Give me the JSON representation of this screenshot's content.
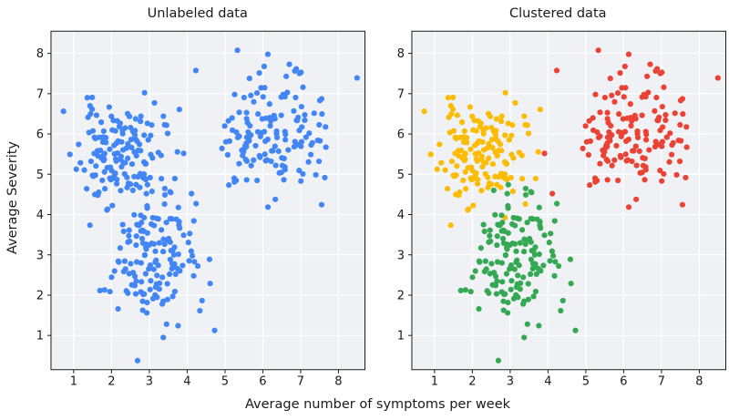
{
  "chart_data": {
    "type": "scatter",
    "panels": [
      {
        "title": "Unlabeled data",
        "coloring": "single",
        "color": "#4285f4"
      },
      {
        "title": "Clustered data",
        "coloring": "by-cluster"
      }
    ],
    "shared": {
      "xlabel": "Average number of symptoms per week",
      "ylabel": "Average Severity",
      "xlim": [
        0.4,
        8.7
      ],
      "ylim": [
        0.15,
        8.55
      ],
      "x_ticks": [
        1,
        2,
        3,
        4,
        5,
        6,
        7,
        8
      ],
      "y_ticks": [
        1,
        2,
        3,
        4,
        5,
        6,
        7,
        8
      ],
      "grid": true,
      "plot_background": "#eff1f5",
      "grid_color": "#ffffff",
      "spine_color": "#1a1a1a",
      "marker_radius": 3.1
    },
    "clusters": [
      {
        "name": "cluster-yellow",
        "color": "#fbbc05",
        "center": [
          2.2,
          5.5
        ],
        "std": [
          0.55,
          0.62
        ],
        "n": 150,
        "seed": 11
      },
      {
        "name": "cluster-green",
        "color": "#34a853",
        "center": [
          3.1,
          3.0
        ],
        "std": [
          0.62,
          0.8
        ],
        "n": 150,
        "seed": 42
      },
      {
        "name": "cluster-red",
        "color": "#ea4335",
        "center": [
          6.2,
          6.0
        ],
        "std": [
          0.8,
          0.82
        ],
        "n": 150,
        "seed": 77
      }
    ]
  }
}
